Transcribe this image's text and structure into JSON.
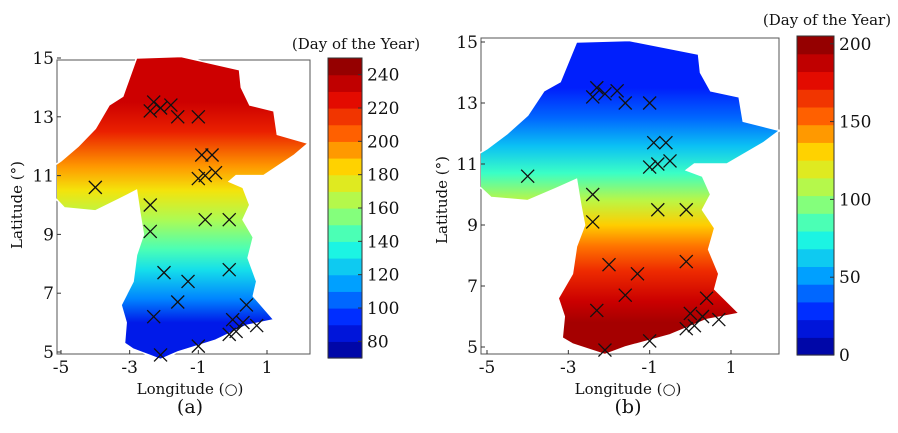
{
  "figure": {
    "panel_labels": [
      "(a)",
      "(b)"
    ]
  },
  "chart_data": [
    {
      "type": "heatmap",
      "panel": "(a)",
      "xlabel": "Longitude (○)",
      "ylabel": "Latitude (°)",
      "xlim": [
        -5,
        2.2
      ],
      "ylim": [
        4.8,
        15.1
      ],
      "xticks": [
        -5,
        -3,
        -1,
        1
      ],
      "xtick_labels": [
        "-5",
        "-3",
        "-1",
        "1"
      ],
      "yticks": [
        5,
        7,
        9,
        11,
        13,
        15
      ],
      "ytick_labels": [
        "5",
        "7",
        "9",
        "11",
        "13",
        "15"
      ],
      "colorbar": {
        "title": "(Day of the Year)",
        "min": 70,
        "max": 250,
        "ticks": [
          80,
          100,
          120,
          140,
          160,
          180,
          200,
          220,
          240
        ],
        "tick_labels": [
          "80",
          "100",
          "120",
          "140",
          "160",
          "180",
          "200",
          "220",
          "240"
        ]
      },
      "field_description_values": [
        {
          "lat": 13.5,
          "value": 232
        },
        {
          "lat": 12.5,
          "value": 220
        },
        {
          "lat": 11.3,
          "value": 195
        },
        {
          "lat": 10.5,
          "value": 180
        },
        {
          "lat": 9.5,
          "value": 163
        },
        {
          "lat": 8.5,
          "value": 145
        },
        {
          "lat": 7.8,
          "value": 130
        },
        {
          "lat": 6.8,
          "value": 110
        },
        {
          "lat": 6.0,
          "value": 88
        }
      ],
      "stations": [
        {
          "lon": -2.3,
          "lat": 13.5
        },
        {
          "lon": -2.1,
          "lat": 13.3
        },
        {
          "lon": -1.8,
          "lat": 13.4
        },
        {
          "lon": -2.4,
          "lat": 13.2
        },
        {
          "lon": -1.6,
          "lat": 13.0
        },
        {
          "lon": -1.0,
          "lat": 13.0
        },
        {
          "lon": -0.9,
          "lat": 11.7
        },
        {
          "lon": -0.6,
          "lat": 11.7
        },
        {
          "lon": -0.8,
          "lat": 11.0
        },
        {
          "lon": -0.5,
          "lat": 11.1
        },
        {
          "lon": -1.0,
          "lat": 10.9
        },
        {
          "lon": -4.0,
          "lat": 10.6
        },
        {
          "lon": -2.4,
          "lat": 10.0
        },
        {
          "lon": -2.4,
          "lat": 9.1
        },
        {
          "lon": -0.8,
          "lat": 9.5
        },
        {
          "lon": -0.1,
          "lat": 9.5
        },
        {
          "lon": -2.0,
          "lat": 7.7
        },
        {
          "lon": -1.3,
          "lat": 7.4
        },
        {
          "lon": -0.1,
          "lat": 7.8
        },
        {
          "lon": -1.6,
          "lat": 6.7
        },
        {
          "lon": 0.4,
          "lat": 6.6
        },
        {
          "lon": -2.3,
          "lat": 6.2
        },
        {
          "lon": 0.0,
          "lat": 6.1
        },
        {
          "lon": 0.3,
          "lat": 6.0
        },
        {
          "lon": 0.7,
          "lat": 5.9
        },
        {
          "lon": -0.1,
          "lat": 5.6
        },
        {
          "lon": 0.1,
          "lat": 5.7
        },
        {
          "lon": -1.0,
          "lat": 5.2
        },
        {
          "lon": -2.1,
          "lat": 4.9
        }
      ]
    },
    {
      "type": "heatmap",
      "panel": "(b)",
      "xlabel": "Longitude (○)",
      "ylabel": "Latitude (°)",
      "xlim": [
        -5,
        2.2
      ],
      "ylim": [
        4.8,
        15.1
      ],
      "xticks": [
        -5,
        -3,
        -1,
        1
      ],
      "xtick_labels": [
        "-5",
        "-3",
        "-1",
        "1"
      ],
      "yticks": [
        5,
        7,
        9,
        11,
        13,
        15
      ],
      "ytick_labels": [
        "5",
        "7",
        "9",
        "11",
        "13",
        "15"
      ],
      "colorbar": {
        "title": "(Day of the Year)",
        "min": 0,
        "max": 205,
        "ticks": [
          0,
          50,
          100,
          150,
          200
        ],
        "tick_labels": [
          "0",
          "50",
          "100",
          "150",
          "200"
        ]
      },
      "field_description_values": [
        {
          "lat": 13.5,
          "value": 25
        },
        {
          "lat": 12.5,
          "value": 40
        },
        {
          "lat": 11.6,
          "value": 60
        },
        {
          "lat": 10.7,
          "value": 82
        },
        {
          "lat": 9.8,
          "value": 110
        },
        {
          "lat": 9.0,
          "value": 132
        },
        {
          "lat": 8.3,
          "value": 150
        },
        {
          "lat": 7.5,
          "value": 168
        },
        {
          "lat": 6.5,
          "value": 185
        },
        {
          "lat": 5.8,
          "value": 195
        }
      ],
      "stations": [
        {
          "lon": -2.3,
          "lat": 13.5
        },
        {
          "lon": -2.1,
          "lat": 13.3
        },
        {
          "lon": -1.8,
          "lat": 13.4
        },
        {
          "lon": -2.4,
          "lat": 13.2
        },
        {
          "lon": -1.6,
          "lat": 13.0
        },
        {
          "lon": -1.0,
          "lat": 13.0
        },
        {
          "lon": -0.9,
          "lat": 11.7
        },
        {
          "lon": -0.6,
          "lat": 11.7
        },
        {
          "lon": -0.8,
          "lat": 11.0
        },
        {
          "lon": -0.5,
          "lat": 11.1
        },
        {
          "lon": -1.0,
          "lat": 10.9
        },
        {
          "lon": -4.0,
          "lat": 10.6
        },
        {
          "lon": -2.4,
          "lat": 10.0
        },
        {
          "lon": -2.4,
          "lat": 9.1
        },
        {
          "lon": -0.8,
          "lat": 9.5
        },
        {
          "lon": -0.1,
          "lat": 9.5
        },
        {
          "lon": -2.0,
          "lat": 7.7
        },
        {
          "lon": -1.3,
          "lat": 7.4
        },
        {
          "lon": -0.1,
          "lat": 7.8
        },
        {
          "lon": -1.6,
          "lat": 6.7
        },
        {
          "lon": 0.4,
          "lat": 6.6
        },
        {
          "lon": -2.3,
          "lat": 6.2
        },
        {
          "lon": 0.0,
          "lat": 6.1
        },
        {
          "lon": 0.3,
          "lat": 6.0
        },
        {
          "lon": 0.7,
          "lat": 5.9
        },
        {
          "lon": -0.1,
          "lat": 5.6
        },
        {
          "lon": 0.1,
          "lat": 5.7
        },
        {
          "lon": -1.0,
          "lat": 5.2
        },
        {
          "lon": -2.1,
          "lat": 4.9
        }
      ]
    }
  ],
  "colormap_jet": [
    "#00008f",
    "#0020ff",
    "#00a0ff",
    "#20ffe0",
    "#a0ff60",
    "#ffe000",
    "#ff6000",
    "#e00000",
    "#800000"
  ],
  "outline_color": "#ffffff",
  "marker_color": "#111111"
}
